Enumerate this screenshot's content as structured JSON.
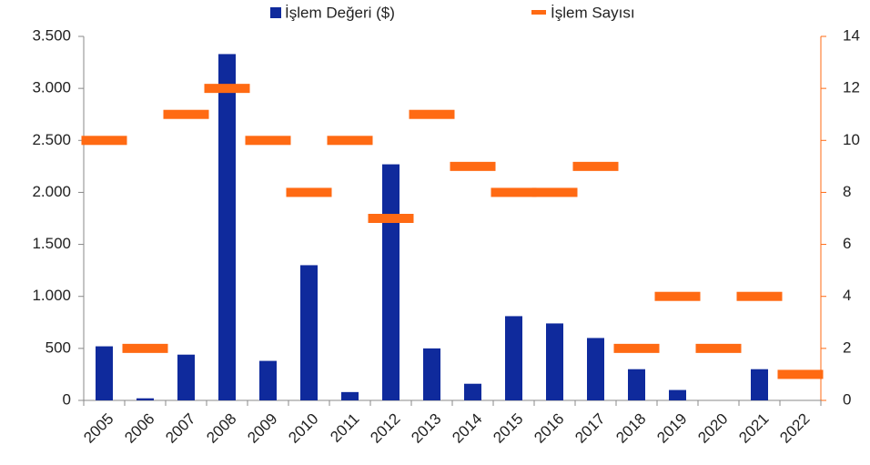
{
  "chart_data": {
    "type": "bar",
    "categories": [
      "2005",
      "2006",
      "2007",
      "2008",
      "2009",
      "2010",
      "2011",
      "2012",
      "2013",
      "2014",
      "2015",
      "2016",
      "2017",
      "2018",
      "2019",
      "2020",
      "2021",
      "2022"
    ],
    "series": [
      {
        "name": "İşlem Değeri ($)",
        "color": "#0f2a9c",
        "type": "bar",
        "values": [
          520,
          20,
          440,
          3330,
          380,
          1300,
          80,
          2270,
          500,
          160,
          810,
          740,
          600,
          300,
          100,
          0,
          300,
          0
        ]
      },
      {
        "name": "İşlem Sayısı",
        "color": "#ff6a13",
        "type": "dash",
        "axis": "y2",
        "values": [
          10,
          2,
          11,
          12,
          10,
          8,
          10,
          7,
          11,
          9,
          8,
          8,
          9,
          2,
          4,
          2,
          4,
          1
        ]
      }
    ],
    "ylim": [
      0,
      3500
    ],
    "yticks": [
      0,
      500,
      {
        "value": 1000,
        "label": "1.000"
      },
      {
        "value": 1500,
        "label": "1.500"
      },
      {
        "value": 2000,
        "label": "2.000"
      },
      {
        "value": 2500,
        "label": "2.500"
      },
      {
        "value": 3000,
        "label": "3.000"
      },
      {
        "value": 3500,
        "label": "3.500"
      }
    ],
    "y2lim": [
      0,
      14
    ],
    "y2ticks": [
      0,
      2,
      4,
      6,
      8,
      10,
      12,
      14
    ],
    "legend": "top"
  }
}
